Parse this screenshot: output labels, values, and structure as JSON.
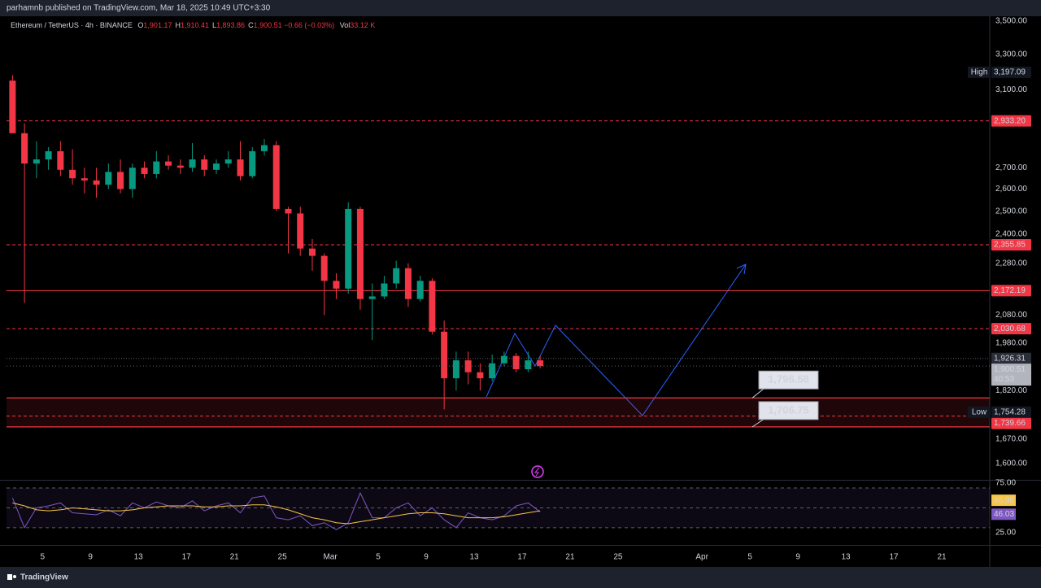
{
  "header": {
    "publisher": "parhamnb published on TradingView.com, Mar 18, 2025 10:49 UTC+3:30"
  },
  "chart_data": {
    "type": "candlestick",
    "title": "Ethereum / TetherUS · 4h · BINANCE",
    "legend": [
      {
        "key": "O",
        "value": "1,901.17"
      },
      {
        "key": "H",
        "value": "1,910.41"
      },
      {
        "key": "L",
        "value": "1,893.86"
      },
      {
        "key": "C",
        "value": "1,900.51"
      }
    ],
    "change": "−0.66 (−0.03%)",
    "volume": {
      "key": "Vol",
      "value": "33.12 K"
    },
    "x": [
      "Feb 2",
      "Feb 3",
      "Feb 4",
      "Feb 5",
      "Feb 6",
      "Feb 7",
      "Feb 8",
      "Feb 9",
      "Feb 10",
      "Feb 11",
      "Feb 12",
      "Feb 13",
      "Feb 14",
      "Feb 15",
      "Feb 16",
      "Feb 17",
      "Feb 18",
      "Feb 19",
      "Feb 20",
      "Feb 21",
      "Feb 22",
      "Feb 23",
      "Feb 24",
      "Feb 25",
      "Feb 26",
      "Feb 27",
      "Feb 28",
      "Mar 1",
      "Mar 2",
      "Mar 3",
      "Mar 4",
      "Mar 5",
      "Mar 6",
      "Mar 7",
      "Mar 8",
      "Mar 9",
      "Mar 10",
      "Mar 11",
      "Mar 12",
      "Mar 13",
      "Mar 14",
      "Mar 15",
      "Mar 16",
      "Mar 17",
      "Mar 18"
    ],
    "open": [
      3150,
      2870,
      2720,
      2740,
      2780,
      2690,
      2650,
      2640,
      2620,
      2680,
      2600,
      2700,
      2670,
      2730,
      2710,
      2700,
      2740,
      2690,
      2720,
      2740,
      2660,
      2780,
      2810,
      2510,
      2490,
      2340,
      2310,
      2210,
      2180,
      2510,
      2140,
      2150,
      2200,
      2260,
      2140,
      2210,
      2020,
      1860,
      1920,
      1880,
      1860,
      1910,
      1935,
      1890,
      1920
    ],
    "high": [
      3180,
      2920,
      2830,
      2800,
      2830,
      2790,
      2700,
      2700,
      2720,
      2740,
      2720,
      2730,
      2780,
      2760,
      2740,
      2820,
      2760,
      2740,
      2780,
      2830,
      2800,
      2840,
      2830,
      2520,
      2520,
      2380,
      2320,
      2240,
      2540,
      2520,
      2200,
      2230,
      2290,
      2280,
      2230,
      2220,
      2060,
      1950,
      1950,
      1910,
      1940,
      1950,
      1945,
      1950,
      1935
    ],
    "low": [
      2870,
      2125,
      2650,
      2690,
      2660,
      2620,
      2580,
      2560,
      2600,
      2580,
      2560,
      2650,
      2650,
      2690,
      2670,
      2680,
      2660,
      2670,
      2700,
      2640,
      2650,
      2760,
      2500,
      2320,
      2310,
      2250,
      2080,
      2140,
      2160,
      2100,
      1990,
      2140,
      2180,
      2110,
      2130,
      2010,
      1760,
      1820,
      1840,
      1820,
      1850,
      1900,
      1880,
      1880,
      1893
    ],
    "close": [
      2870,
      2720,
      2740,
      2780,
      2690,
      2650,
      2640,
      2620,
      2680,
      2600,
      2700,
      2670,
      2730,
      2710,
      2700,
      2740,
      2690,
      2720,
      2740,
      2660,
      2780,
      2810,
      2510,
      2490,
      2340,
      2310,
      2210,
      2180,
      2510,
      2140,
      2150,
      2200,
      2260,
      2140,
      2210,
      2020,
      1860,
      1920,
      1880,
      1860,
      1910,
      1935,
      1890,
      1920,
      1900.51
    ],
    "up_color": "#089981",
    "down_color": "#f23645",
    "log_scale": true,
    "ylim": [
      1554,
      3530
    ],
    "yticks": [
      {
        "value": 3500,
        "label": "3,500.00"
      },
      {
        "value": 3300,
        "label": "3,300.00"
      },
      {
        "value": 3100,
        "label": "3,100.00"
      },
      {
        "value": 2700,
        "label": "2,700.00"
      },
      {
        "value": 2600,
        "label": "2,600.00"
      },
      {
        "value": 2500,
        "label": "2,500.00"
      },
      {
        "value": 2400,
        "label": "2,400.00"
      },
      {
        "value": 2280,
        "label": "2,280.00"
      },
      {
        "value": 2080,
        "label": "2,080.00"
      },
      {
        "value": 1980,
        "label": "1,980.00"
      },
      {
        "value": 1820,
        "label": "1,820.00"
      },
      {
        "value": 1670,
        "label": "1,670.00"
      },
      {
        "value": 1600,
        "label": "1,600.00"
      }
    ],
    "xlim": [
      "Feb 2",
      "Apr 25"
    ],
    "xticks": [
      {
        "value": "Feb 5",
        "label": "5"
      },
      {
        "value": "Feb 9",
        "label": "9"
      },
      {
        "value": "Feb 13",
        "label": "13"
      },
      {
        "value": "Feb 17",
        "label": "17"
      },
      {
        "value": "Feb 21",
        "label": "21"
      },
      {
        "value": "Feb 25",
        "label": "25"
      },
      {
        "value": "Mar 1",
        "label": "Mar"
      },
      {
        "value": "Mar 5",
        "label": "5"
      },
      {
        "value": "Mar 9",
        "label": "9"
      },
      {
        "value": "Mar 13",
        "label": "13"
      },
      {
        "value": "Mar 17",
        "label": "17"
      },
      {
        "value": "Mar 21",
        "label": "21"
      },
      {
        "value": "Mar 25",
        "label": "25"
      },
      {
        "value": "Apr 1",
        "label": "Apr"
      },
      {
        "value": "Apr 5",
        "label": "5"
      },
      {
        "value": "Apr 9",
        "label": "9"
      },
      {
        "value": "Apr 13",
        "label": "13"
      },
      {
        "value": "Apr 17",
        "label": "17"
      },
      {
        "value": "Apr 21",
        "label": "21"
      }
    ],
    "levels": [
      {
        "value": 2933.2,
        "label": "2,933.20",
        "style": "dashed",
        "color": "#f23645"
      },
      {
        "value": 2355.85,
        "label": "2,355.85",
        "style": "dashed",
        "color": "#f23645"
      },
      {
        "value": 2172.19,
        "label": "2,172.19",
        "style": "solid",
        "color": "#f23645"
      },
      {
        "value": 2030.68,
        "label": "2,030.68",
        "style": "dashed",
        "color": "#f23645"
      },
      {
        "value": 1926.31,
        "label": "1,926.31",
        "style": "dotted",
        "color": "#5d606b"
      },
      {
        "value": 1739.66,
        "label": "1,739.66",
        "style": "dashed",
        "color": "#f23645"
      }
    ],
    "price_high": {
      "label": "High",
      "value": 3197.09,
      "value_label": "3,197.09"
    },
    "price_low": {
      "label": "Low",
      "value": 1754.28,
      "value_label": "1,754.28"
    },
    "last": {
      "value": 1900.51,
      "label": "1,900.51",
      "countdown": "40:53"
    },
    "callouts": [
      {
        "value": 1796.58,
        "label": "1,796.58"
      },
      {
        "value": 1706.75,
        "label": "1,706.75"
      }
    ]
  },
  "rsi": {
    "type": "line",
    "ylim": [
      14.3,
      76.6
    ],
    "yticks": [
      {
        "value": 75,
        "label": "75.00"
      },
      {
        "value": 25,
        "label": "25.00"
      }
    ],
    "bands": [
      70,
      50,
      30
    ],
    "series": [
      {
        "color": "#7e57c2",
        "last_label": "46.03",
        "values": [
          60,
          30,
          50,
          52,
          55,
          45,
          44,
          43,
          48,
          42,
          55,
          50,
          56,
          52,
          50,
          57,
          47,
          52,
          55,
          45,
          60,
          62,
          40,
          38,
          42,
          32,
          35,
          28,
          35,
          65,
          40,
          40,
          50,
          55,
          42,
          50,
          38,
          30,
          45,
          40,
          38,
          42,
          52,
          55,
          46.03
        ]
      },
      {
        "color": "#f7c548",
        "last_label": "46.98",
        "values": [
          55,
          52,
          48,
          47,
          48,
          50,
          49,
          48,
          47,
          47,
          48,
          50,
          51,
          52,
          52,
          52,
          51,
          51,
          52,
          52,
          53,
          53,
          51,
          48,
          44,
          40,
          38,
          35,
          34,
          36,
          38,
          40,
          42,
          44,
          45,
          45,
          44,
          42,
          40,
          40,
          40,
          41,
          43,
          45,
          46.98
        ]
      }
    ]
  },
  "footer": {
    "brand": "TradingView"
  }
}
